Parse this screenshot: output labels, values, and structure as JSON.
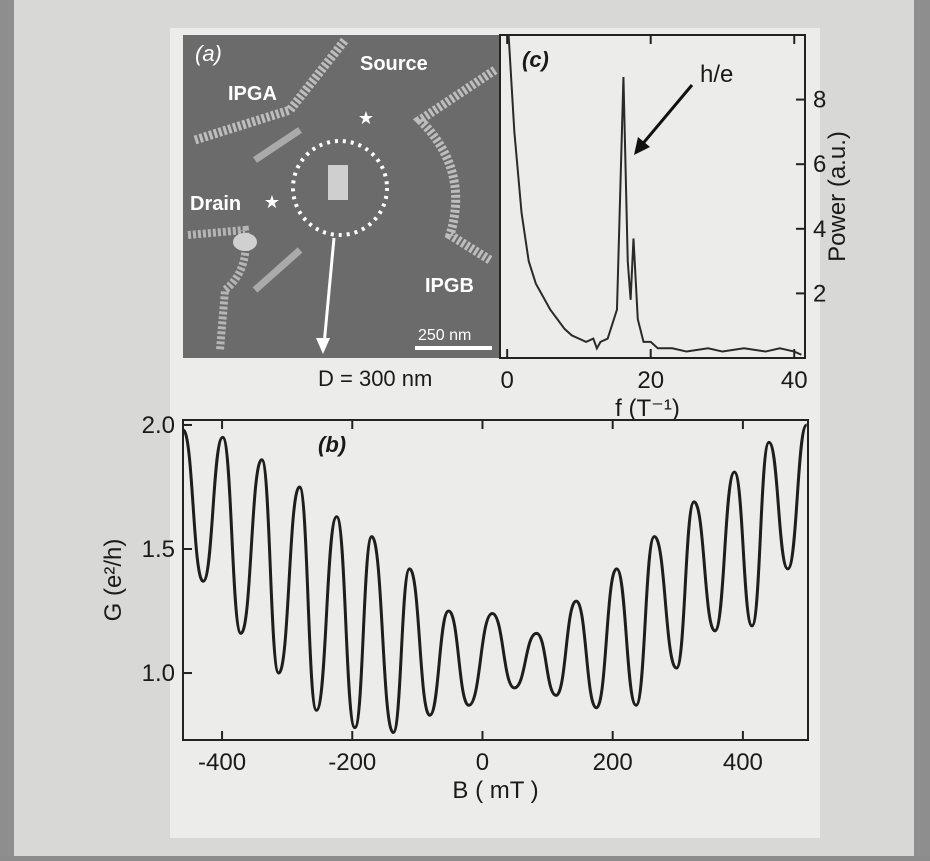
{
  "image_panel": {
    "label": "(a)",
    "regions": [
      "IPGA",
      "Source",
      "Drain",
      "IPGB"
    ],
    "scale_bar": "250 nm",
    "caption": "D = 300 nm"
  },
  "chart_data": [
    {
      "type": "line",
      "panel_label": "(c)",
      "x_label": "f (T⁻¹)",
      "y_label": "Power (a.u.)",
      "annotation": "h/e",
      "x": [
        0.2,
        1,
        2,
        3,
        4,
        5,
        6,
        7,
        8,
        9,
        10,
        11,
        12,
        12.5,
        13,
        14,
        15.3,
        16.2,
        16.8,
        17.2,
        17.6,
        18.2,
        19,
        20,
        21,
        23,
        25,
        28,
        30,
        33,
        36,
        38,
        40,
        41
      ],
      "values": [
        10,
        7,
        4.5,
        3,
        2.3,
        1.9,
        1.5,
        1.2,
        0.9,
        0.7,
        0.6,
        0.5,
        0.6,
        0.3,
        0.5,
        0.6,
        1.5,
        8.7,
        3,
        1.8,
        3.7,
        1.2,
        0.5,
        0.5,
        0.3,
        0.3,
        0.2,
        0.3,
        0.2,
        0.3,
        0.2,
        0.3,
        0.2,
        0.1
      ],
      "color": "#2a2a2a",
      "xlim": [
        -1,
        41.5
      ],
      "ylim": [
        0,
        10
      ],
      "xticks": [
        0,
        20,
        40
      ],
      "yticks": [
        2,
        4,
        6,
        8
      ]
    },
    {
      "type": "line",
      "panel_label": "(b)",
      "x_label": "B ( mT )",
      "y_label": "G (e²/h)",
      "x": [
        -460,
        -429,
        -399,
        -371,
        -339,
        -313,
        -281,
        -255,
        -224,
        -196,
        -170,
        -137,
        -112,
        -81,
        -52,
        -21,
        15,
        49,
        83,
        113,
        144,
        175,
        206,
        236,
        264,
        298,
        325,
        357,
        387,
        414,
        440,
        469,
        498
      ],
      "values": [
        1.98,
        1.37,
        1.95,
        1.16,
        1.86,
        1.0,
        1.75,
        0.85,
        1.63,
        0.78,
        1.55,
        0.76,
        1.42,
        0.83,
        1.25,
        0.87,
        1.24,
        0.94,
        1.16,
        0.91,
        1.29,
        0.86,
        1.42,
        0.87,
        1.55,
        1.02,
        1.69,
        1.17,
        1.81,
        1.19,
        1.93,
        1.42,
        2.0
      ],
      "color": "#1e1e1e",
      "xlim": [
        -460,
        500
      ],
      "ylim": [
        0.73,
        2.02
      ],
      "xticks": [
        -400,
        -200,
        0,
        200,
        400
      ],
      "yticks": [
        {
          "value": 1,
          "label": "1.0"
        },
        1.5,
        {
          "value": 2,
          "label": "2.0"
        }
      ]
    }
  ]
}
